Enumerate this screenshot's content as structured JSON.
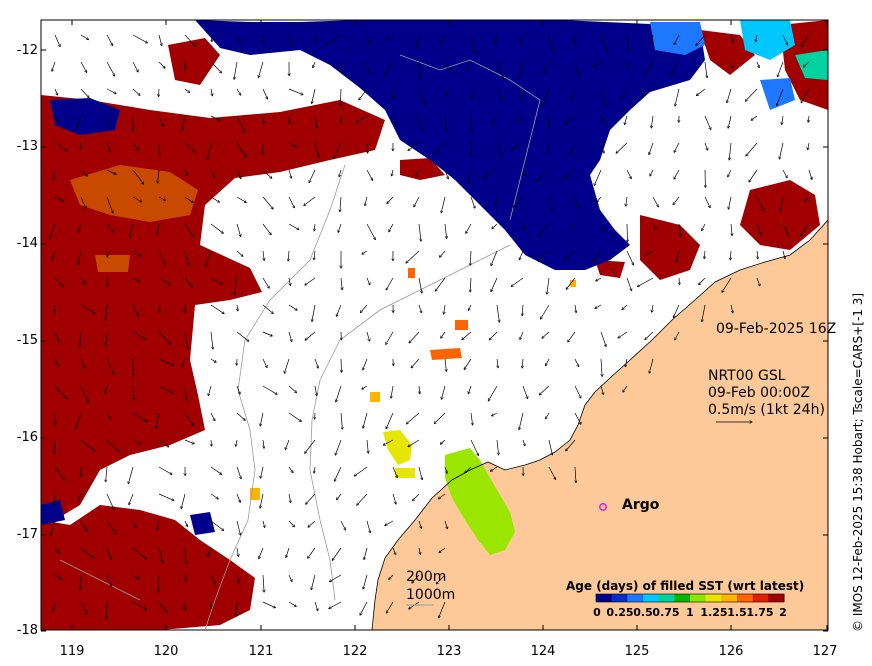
{
  "map": {
    "y_ticks": [
      "-12",
      "-13",
      "-14",
      "-15",
      "-16",
      "-17",
      "-18"
    ],
    "x_ticks": [
      "119",
      "120",
      "121",
      "122",
      "123",
      "124",
      "125",
      "126",
      "127"
    ],
    "lat_range": [
      -18,
      -11.55
    ],
    "lon_range": [
      118.6,
      127
    ],
    "land_color": "#fdc998",
    "sea_color": "#ffffff"
  },
  "info": {
    "date": "09-Feb-2025 16Z",
    "product": "NRT00 GSL",
    "current_time": "09-Feb 00:00Z",
    "scale": "0.5m/s (1kt 24h)"
  },
  "contours": {
    "c200": "200m",
    "c1000": "1000m"
  },
  "argo": {
    "label": "Argo",
    "lon": 124.8,
    "lat": -16.7,
    "color": "#e01fe0"
  },
  "colorbar": {
    "title": "Age (days) of filled SST (wrt latest)",
    "ticks": [
      {
        "label": "0",
        "value": 0
      },
      {
        "label": "0.25",
        "value": 0.25
      },
      {
        "label": "0.5",
        "value": 0.5
      },
      {
        "label": "0.75",
        "value": 0.75
      },
      {
        "label": "1",
        "value": 1
      },
      {
        "label": "1.25",
        "value": 1.25
      },
      {
        "label": "1.5",
        "value": 1.5
      },
      {
        "label": "1.75",
        "value": 1.75
      },
      {
        "label": "2",
        "value": 2
      }
    ],
    "colors": [
      "#00008b",
      "#0a2dc8",
      "#1e78ff",
      "#00c8ff",
      "#00d2a0",
      "#00b400",
      "#8ce600",
      "#e6e600",
      "#ffb400",
      "#ff6400",
      "#e61e00",
      "#a00000"
    ]
  },
  "credit": "© IMOS 12-Feb-2025 15:38 Hobart; Tscale=CARS+[-1 3]"
}
